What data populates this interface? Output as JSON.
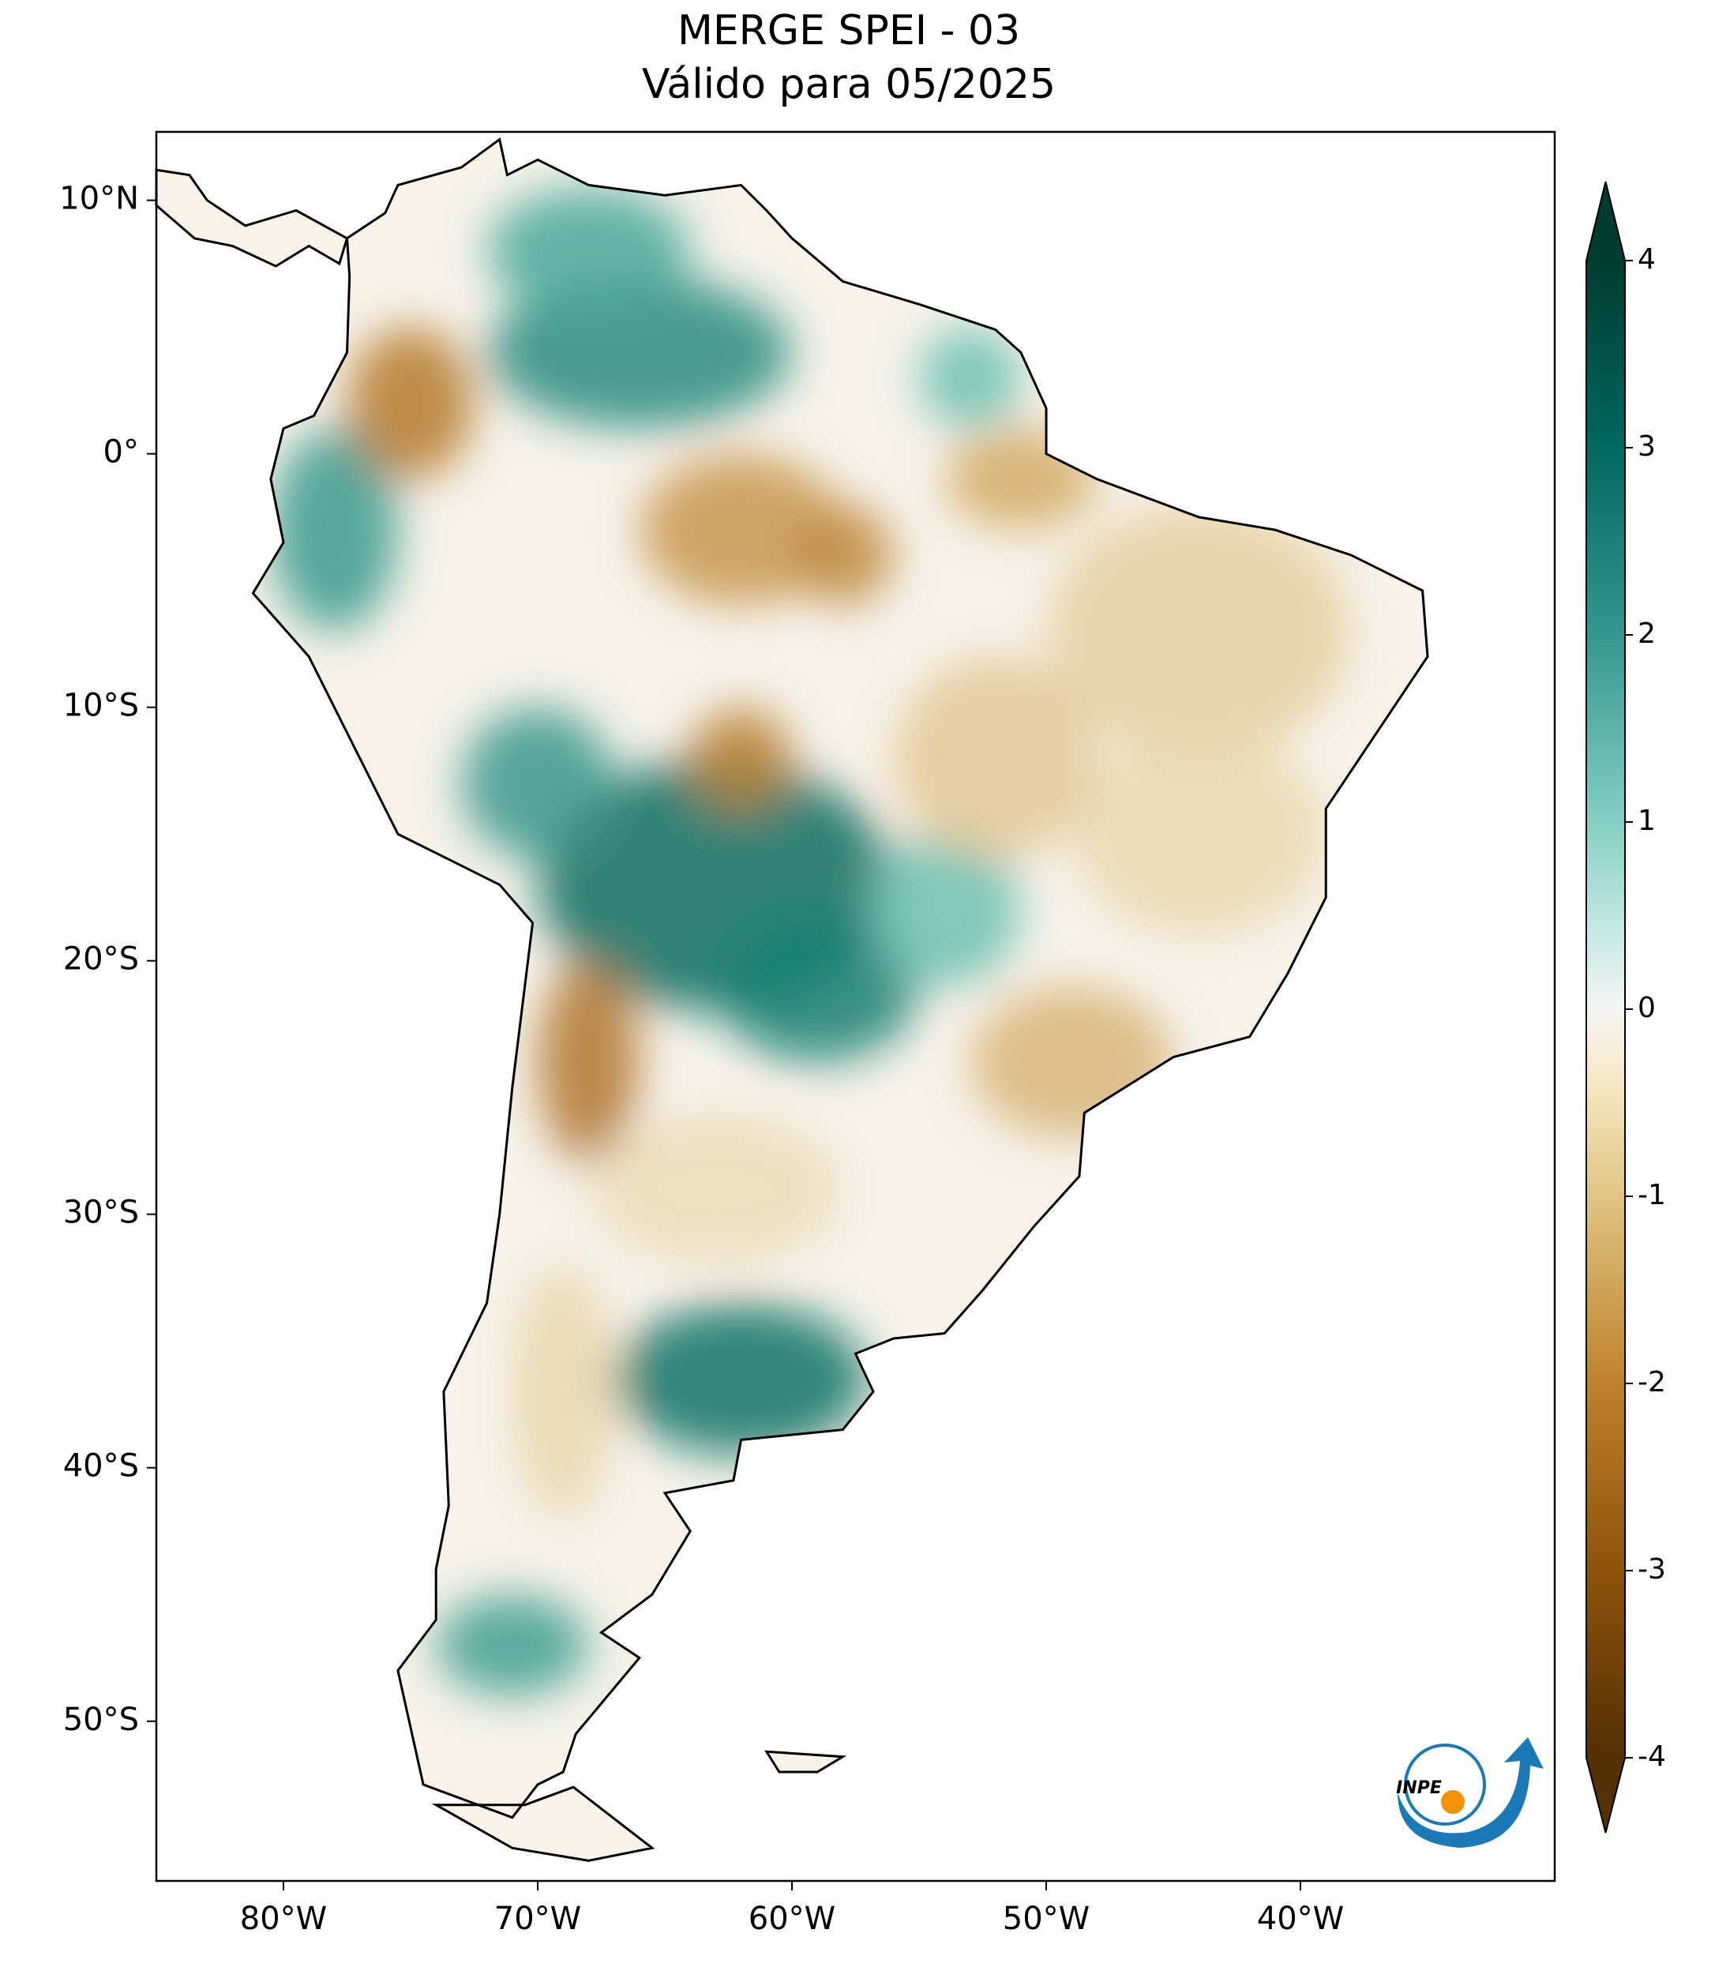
{
  "map": {
    "title": "MERGE   SPEI - 03",
    "subtitle": "Válido para 05/2025",
    "xlim": [
      -85,
      -30
    ],
    "ylim": [
      -56.3,
      12.7
    ],
    "xticks": [
      {
        "value": -80,
        "label": "80°W"
      },
      {
        "value": -70,
        "label": "70°W"
      },
      {
        "value": -60,
        "label": "60°W"
      },
      {
        "value": -50,
        "label": "50°W"
      },
      {
        "value": -40,
        "label": "40°W"
      }
    ],
    "yticks": [
      {
        "value": 10,
        "label": "10°N"
      },
      {
        "value": 0,
        "label": "0°"
      },
      {
        "value": -10,
        "label": "10°S"
      },
      {
        "value": -20,
        "label": "20°S"
      },
      {
        "value": -30,
        "label": "30°S"
      },
      {
        "value": -40,
        "label": "40°S"
      },
      {
        "value": -50,
        "label": "50°S"
      }
    ],
    "colorbar": {
      "lim": [
        -4,
        4
      ],
      "ticks": [
        4,
        3,
        2,
        1,
        0,
        -1,
        -2,
        -3,
        -4
      ]
    },
    "logo": "INPE"
  }
}
